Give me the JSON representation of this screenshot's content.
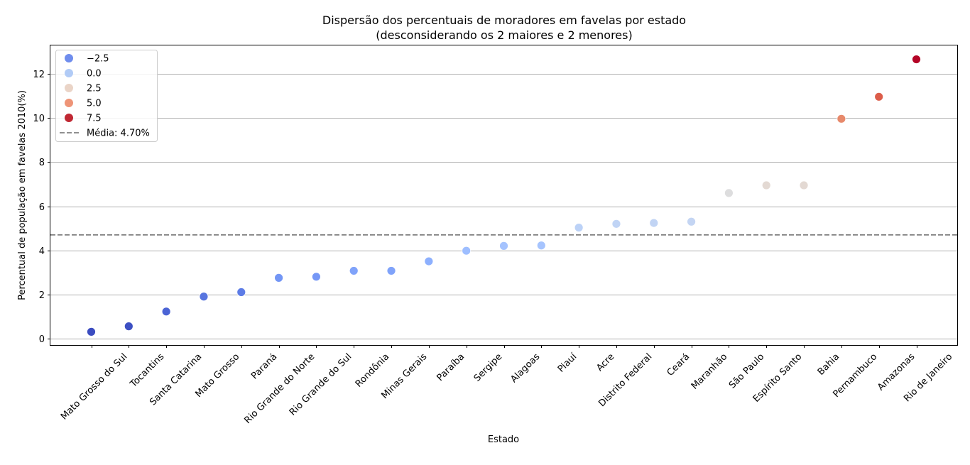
{
  "chart_data": {
    "type": "scatter",
    "title_line1": "Dispersão dos percentuais de moradores em favelas por estado",
    "title_line2": "(desconsiderando os 2 maiores e 2 menores)",
    "xlabel": "Estado",
    "ylabel": "Percentual de população em favelas 2010(%)",
    "ylim": [
      -0.3,
      13.3
    ],
    "yticks": [
      0,
      2,
      4,
      6,
      8,
      10,
      12
    ],
    "grid": "y",
    "legend_position": "upper-left",
    "mean_line": {
      "value": 4.7,
      "label": "Média: 4.70%",
      "color": "#808080"
    },
    "legend_hue": [
      {
        "label": "−2.5",
        "color": "#6f8ded"
      },
      {
        "label": "0.0",
        "color": "#b1cbf6"
      },
      {
        "label": "2.5",
        "color": "#ead4c7"
      },
      {
        "label": "5.0",
        "color": "#ee9477"
      },
      {
        "label": "7.5",
        "color": "#c02833"
      }
    ],
    "categories": [
      "Mato Grosso do Sul",
      "Tocantins",
      "Santa Catarina",
      "Mato Grosso",
      "Paraná",
      "Rio Grande do Norte",
      "Rio Grande do Sul",
      "Rondônia",
      "Minas Gerais",
      "Paraíba",
      "Sergipe",
      "Alagoas",
      "Piauí",
      "Acre",
      "Distrito Federal",
      "Ceará",
      "Maranhão",
      "São Paulo",
      "Espírito Santo",
      "Bahia",
      "Pernambuco",
      "Amazonas",
      "Rio de Janeiro"
    ],
    "values": [
      0.3,
      0.55,
      1.22,
      1.9,
      2.1,
      2.75,
      2.8,
      3.07,
      3.07,
      3.5,
      3.98,
      4.2,
      4.22,
      5.03,
      5.2,
      5.24,
      5.3,
      6.6,
      6.95,
      6.95,
      9.97,
      10.97,
      12.67
    ],
    "point_colors": [
      "#3b4cc0",
      "#3d50c3",
      "#4b64d5",
      "#5875df",
      "#5d7ce6",
      "#7396f5",
      "#7597f6",
      "#80a3fa",
      "#80a3fa",
      "#8db0fe",
      "#9ebeff",
      "#a5c3fe",
      "#a6c4fe",
      "#bcd2f7",
      "#c0d4f5",
      "#c1d4f4",
      "#c4d5f3",
      "#ddddde",
      "#e3d9d3",
      "#e3d9d3",
      "#e7896b",
      "#dc5d4a",
      "#b40426"
    ]
  }
}
